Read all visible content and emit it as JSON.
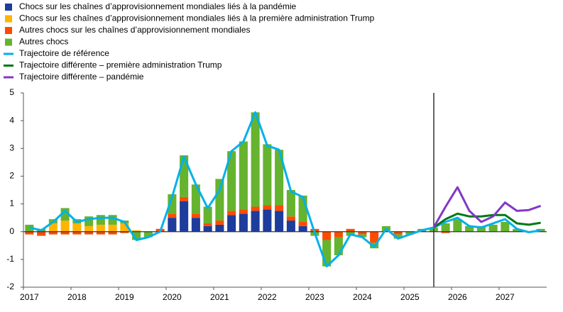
{
  "chart_data": {
    "type": "bar",
    "categories": [
      "2017",
      null,
      null,
      null,
      "2018",
      null,
      null,
      null,
      "2019",
      null,
      null,
      null,
      "2020",
      null,
      null,
      null,
      "2021",
      null,
      null,
      null,
      "2022",
      null,
      null,
      null,
      "2023",
      null,
      null,
      null,
      "2024",
      null,
      null,
      null,
      "2025",
      null,
      null,
      null,
      "2026",
      null,
      null,
      null,
      "2027",
      null,
      null,
      null
    ],
    "ylim": [
      -2,
      5
    ],
    "yticks": [
      -2,
      -1,
      0,
      1,
      2,
      3,
      4,
      5
    ],
    "series": [
      {
        "name": "Chocs sur les chaînes d’approvisionnement mondiales liés à la pandémie",
        "type": "bar",
        "color": "#1d3c9c",
        "values": [
          0,
          0,
          0,
          0,
          0,
          0,
          0,
          0,
          0,
          0,
          0,
          0,
          0.5,
          1.1,
          0.5,
          0.2,
          0.25,
          0.6,
          0.65,
          0.75,
          0.8,
          0.75,
          0.4,
          0.2,
          0,
          0,
          0,
          0,
          0,
          0,
          0,
          0,
          0,
          0,
          0,
          0,
          0,
          0,
          0,
          0,
          0,
          0,
          0,
          0
        ]
      },
      {
        "name": "Chocs sur les chaînes d’approvisionnement mondiales liés à la première administration Trump",
        "type": "bar",
        "color": "#ffb400",
        "values": [
          0,
          0,
          0.3,
          0.4,
          0.3,
          0.2,
          0.25,
          0.25,
          0.3,
          0.05,
          0,
          0,
          0,
          0,
          0,
          0,
          0,
          0,
          0,
          0,
          0,
          0,
          0,
          0,
          0,
          0,
          0,
          0,
          0,
          0,
          0,
          0,
          0,
          0,
          0,
          0,
          0,
          0,
          0,
          0,
          0,
          0,
          0,
          0
        ]
      },
      {
        "name": "Autres chocs sur les chaînes d’approvisionnement mondiales",
        "type": "bar",
        "color": "#ff4b00",
        "values": [
          -0.1,
          -0.15,
          -0.1,
          -0.1,
          -0.1,
          -0.1,
          -0.1,
          -0.1,
          -0.05,
          0,
          0,
          0.1,
          0.15,
          0.15,
          0.15,
          0.1,
          0.15,
          0.15,
          0.15,
          0.15,
          0.15,
          0.2,
          0.15,
          0.15,
          0.1,
          -0.3,
          -0.2,
          0.1,
          -0.1,
          -0.4,
          0,
          -0.1,
          0,
          0,
          0,
          -0.05,
          0,
          0,
          0,
          0,
          0,
          0,
          0,
          0
        ]
      },
      {
        "name": "Autres chocs",
        "type": "bar",
        "color": "#65b32e",
        "values": [
          0.25,
          0.1,
          0.15,
          0.45,
          0.15,
          0.35,
          0.35,
          0.35,
          0.1,
          -0.3,
          -0.2,
          0,
          0.7,
          1.5,
          1.05,
          0.6,
          1.5,
          2.15,
          2.45,
          3.4,
          2.2,
          2.0,
          0.95,
          0.95,
          -0.15,
          -0.95,
          -0.65,
          -0.15,
          -0.1,
          -0.2,
          0.2,
          -0.15,
          -0.1,
          0.1,
          0.15,
          0.3,
          0.45,
          0.2,
          0.2,
          0.25,
          0.35,
          0.1,
          0,
          0.1
        ]
      },
      {
        "name": "Trajectoire de référence",
        "type": "line",
        "color": "#00b1ea",
        "values": [
          0.15,
          0.05,
          0.35,
          0.75,
          0.35,
          0.45,
          0.5,
          0.5,
          0.35,
          -0.3,
          -0.2,
          0,
          1.25,
          2.7,
          1.7,
          0.85,
          1.5,
          2.9,
          3.25,
          4.3,
          3.1,
          2.95,
          1.45,
          1.25,
          -0.05,
          -1.25,
          -0.85,
          -0.1,
          -0.2,
          -0.55,
          0.1,
          -0.25,
          -0.1,
          0.05,
          0.15,
          0.35,
          0.5,
          0.2,
          0.15,
          0.3,
          0.45,
          0.1,
          -0.02,
          0.05
        ]
      },
      {
        "name": "Trajectoire différente – première administration Trump",
        "type": "line",
        "color": "#007816",
        "values": [
          null,
          null,
          null,
          null,
          null,
          null,
          null,
          null,
          null,
          null,
          null,
          null,
          null,
          null,
          null,
          null,
          null,
          null,
          null,
          null,
          null,
          null,
          null,
          null,
          null,
          null,
          null,
          null,
          null,
          null,
          null,
          null,
          null,
          null,
          0.15,
          0.45,
          0.65,
          0.55,
          0.55,
          0.6,
          0.6,
          0.3,
          0.25,
          0.32
        ]
      },
      {
        "name": "Trajectoire différente – pandémie",
        "type": "line",
        "color": "#8139c6",
        "values": [
          null,
          null,
          null,
          null,
          null,
          null,
          null,
          null,
          null,
          null,
          null,
          null,
          null,
          null,
          null,
          null,
          null,
          null,
          null,
          null,
          null,
          null,
          null,
          null,
          null,
          null,
          null,
          null,
          null,
          null,
          null,
          null,
          null,
          null,
          0.15,
          0.9,
          1.6,
          0.75,
          0.35,
          0.55,
          1.05,
          0.75,
          0.78,
          0.93
        ]
      }
    ]
  }
}
